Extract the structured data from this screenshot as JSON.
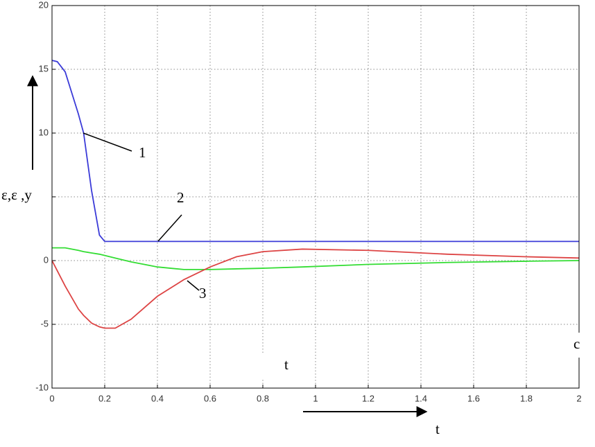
{
  "chart_data": {
    "type": "line",
    "y_label": "ε,ε ,y",
    "x_label": "t",
    "x_unit": "c",
    "x_label_2": "t",
    "annotations": [
      "1",
      "2",
      "3"
    ],
    "x": [
      0,
      0.02,
      0.05,
      0.1,
      0.12,
      0.15,
      0.18,
      0.2,
      0.24,
      0.3,
      0.4,
      0.5,
      0.6,
      0.7,
      0.8,
      0.95,
      1.2,
      1.5,
      1.8,
      2
    ],
    "series": [
      {
        "color": "#3b3bd8",
        "values": [
          15.7,
          15.6,
          14.8,
          11.5,
          10,
          5.5,
          2,
          1.5,
          1.5,
          1.5,
          1.5,
          1.5,
          1.5,
          1.5,
          1.5,
          1.5,
          1.5,
          1.5,
          1.5,
          1.5
        ]
      },
      {
        "color": "#33dd33",
        "values": [
          1,
          1,
          1,
          0.8,
          0.7,
          0.6,
          0.5,
          0.4,
          0.2,
          -0.1,
          -0.5,
          -0.7,
          -0.7,
          -0.65,
          -0.6,
          -0.5,
          -0.3,
          -0.15,
          -0.05,
          0
        ]
      },
      {
        "color": "#dd4444",
        "values": [
          0,
          -0.8,
          -2,
          -3.8,
          -4.3,
          -4.9,
          -5.2,
          -5.3,
          -5.3,
          -4.6,
          -2.8,
          -1.5,
          -0.5,
          0.3,
          0.7,
          0.9,
          0.8,
          0.5,
          0.3,
          0.2
        ]
      }
    ],
    "xlim": [
      0,
      2
    ],
    "xticks": [
      0,
      0.2,
      0.4,
      0.6,
      0.8,
      1,
      1.2,
      1.4,
      1.6,
      1.8,
      2
    ],
    "ylim": [
      -10,
      20
    ],
    "yticks": [
      -10,
      -5,
      0,
      5,
      10,
      15,
      20
    ],
    "grid": true
  }
}
